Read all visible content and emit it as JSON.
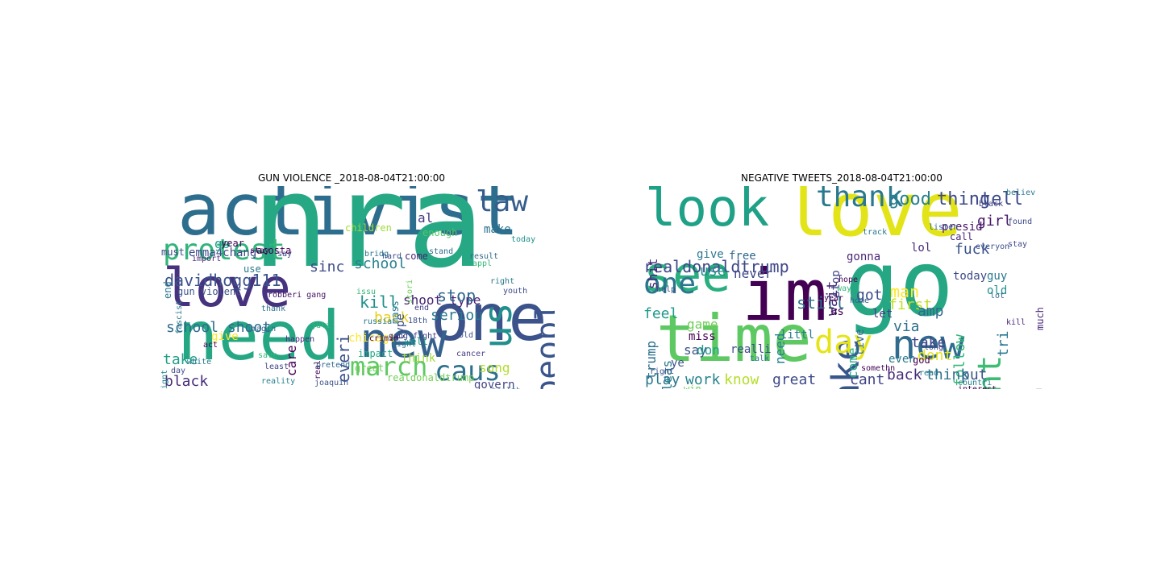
{
  "figure": {
    "panels": [
      {
        "title": "GUN VIOLENCE _2018-08-04T21:00:00",
        "words": [
          {
            "text": "activist",
            "color": "#2d6e8e"
          },
          {
            "text": "nra",
            "color": "#27a884"
          },
          {
            "text": "need",
            "color": "#26a784"
          },
          {
            "text": "one",
            "color": "#3b528b"
          },
          {
            "text": "love",
            "color": "#46327e"
          },
          {
            "text": "new",
            "color": "#34618d"
          },
          {
            "text": "protest",
            "color": "#31b57b"
          },
          {
            "text": "us",
            "color": "#21908d"
          },
          {
            "text": "law",
            "color": "#365c8d"
          },
          {
            "text": "peopl",
            "color": "#39558c"
          },
          {
            "text": "march",
            "color": "#5ec962"
          },
          {
            "text": "caus",
            "color": "#2d708e"
          },
          {
            "text": "davidhogg111",
            "color": "#3b528b"
          },
          {
            "text": "school shoot",
            "color": "#2f6c8e"
          },
          {
            "text": "sinc",
            "color": "#3e4a89"
          },
          {
            "text": "school",
            "color": "#26828e"
          },
          {
            "text": "shoot type",
            "color": "#482374"
          },
          {
            "text": "care",
            "color": "#440154"
          },
          {
            "text": "everi",
            "color": "#3b528b"
          },
          {
            "text": "kill",
            "color": "#21908d"
          },
          {
            "text": "stop",
            "color": "#31688e"
          },
          {
            "text": "seriou",
            "color": "#2a788e"
          },
          {
            "text": "back",
            "color": "#e6cf1c"
          },
          {
            "text": "black",
            "color": "#472c7a"
          },
          {
            "text": "take",
            "color": "#1f9e89"
          },
          {
            "text": "song",
            "color": "#b2dd2d"
          },
          {
            "text": "emma4chang",
            "color": "#3e4a89"
          },
          {
            "text": "acosta",
            "color": "#440154"
          },
          {
            "text": "children",
            "color": "#9fda3a"
          },
          {
            "text": "al",
            "color": "#443983"
          },
          {
            "text": "make",
            "color": "#2c728e"
          },
          {
            "text": "enough",
            "color": "#52c569"
          },
          {
            "text": "gun violenc",
            "color": "#3b528b"
          },
          {
            "text": "hope",
            "color": "#6ece58"
          },
          {
            "text": "help",
            "color": "#25858e"
          },
          {
            "text": "govern",
            "color": "#414487"
          },
          {
            "text": "chicago",
            "color": "#fde725"
          },
          {
            "text": "type",
            "color": "#3b528b"
          },
          {
            "text": "mass",
            "color": "#2a788e"
          },
          {
            "text": "gang fight",
            "color": "#433e85"
          },
          {
            "text": "realdonaldtrump",
            "color": "#73d056"
          },
          {
            "text": "end",
            "color": "#2a788e"
          },
          {
            "text": "go",
            "color": "#1f9e89"
          },
          {
            "text": "must",
            "color": "#3e4a89"
          },
          {
            "text": "year",
            "color": "#440154"
          },
          {
            "text": "use",
            "color": "#2a788e"
          },
          {
            "text": "give",
            "color": "#fde725"
          },
          {
            "text": "think",
            "color": "#9fda3a"
          },
          {
            "text": "great",
            "color": "#6ece58"
          },
          {
            "text": "word",
            "color": "#3b528b"
          },
          {
            "text": "countri",
            "color": "#35b779"
          },
          {
            "text": "mass murdersuicid",
            "color": "#31688e"
          },
          {
            "text": "impact",
            "color": "#22a884"
          },
          {
            "text": "well",
            "color": "#1f9e89"
          },
          {
            "text": "come",
            "color": "#482878"
          },
          {
            "text": "robberi gang",
            "color": "#481467"
          },
          {
            "text": "bridg",
            "color": "#2a788e"
          },
          {
            "text": "hard",
            "color": "#3e4a89"
          },
          {
            "text": "stand",
            "color": "#2d708e"
          },
          {
            "text": "joaquin",
            "color": "#3b528b"
          },
          {
            "text": "reality",
            "color": "#26828e"
          },
          {
            "text": "save",
            "color": "#35b779"
          },
          {
            "text": "real",
            "color": "#440154"
          },
          {
            "text": "fight",
            "color": "#2a788e"
          },
          {
            "text": "end",
            "color": "#433e85"
          },
          {
            "text": "stori",
            "color": "#6ece58"
          },
          {
            "text": "today",
            "color": "#21908d"
          },
          {
            "text": "youth",
            "color": "#3e4a89"
          },
          {
            "text": "imagin",
            "color": "#31688e"
          },
          {
            "text": "act",
            "color": "#440154"
          },
          {
            "text": "white",
            "color": "#2a788e"
          },
          {
            "text": "happen",
            "color": "#472c7a"
          },
          {
            "text": "least",
            "color": "#414487"
          },
          {
            "text": "issu",
            "color": "#35b779"
          },
          {
            "text": "cancer",
            "color": "#433e85"
          },
          {
            "text": "health",
            "color": "#31688e"
          },
          {
            "text": "right",
            "color": "#2a788e"
          },
          {
            "text": "say",
            "color": "#3e4a89"
          },
          {
            "text": "stay",
            "color": "#440154"
          },
          {
            "text": "thank",
            "color": "#2d708e"
          },
          {
            "text": "result",
            "color": "#31688e"
          },
          {
            "text": "18th",
            "color": "#3b528b"
          },
          {
            "text": "ignt",
            "color": "#26828e"
          },
          {
            "text": "day",
            "color": "#3e4a89"
          },
          {
            "text": "fascist",
            "color": "#2a788e"
          },
          {
            "text": "juli",
            "color": "#35b779"
          },
          {
            "text": "crimin",
            "color": "#440154"
          },
          {
            "text": "import",
            "color": "#482878"
          },
          {
            "text": "pretend",
            "color": "#31688e"
          },
          {
            "text": "russia",
            "color": "#2a788e"
          },
          {
            "text": "old",
            "color": "#3b528b"
          },
          {
            "text": "appl",
            "color": "#35b779"
          }
        ]
      },
      {
        "title": "NEGATIVE TWEETS_2018-08-04T21:00:00",
        "words": [
          {
            "text": "love",
            "color": "#e2e418"
          },
          {
            "text": "go",
            "color": "#26a784"
          },
          {
            "text": "peopl",
            "color": "#2c728e"
          },
          {
            "text": "im",
            "color": "#440154"
          },
          {
            "text": "time",
            "color": "#5ec962"
          },
          {
            "text": "look",
            "color": "#1fa187"
          },
          {
            "text": "see",
            "color": "#29af7f"
          },
          {
            "text": "new",
            "color": "#2f6b8e"
          },
          {
            "text": "want",
            "color": "#3dbc74"
          },
          {
            "text": "make",
            "color": "#39568c"
          },
          {
            "text": "day",
            "color": "#e5e419"
          },
          {
            "text": "one",
            "color": "#2b758e"
          },
          {
            "text": "thank",
            "color": "#2a788e"
          },
          {
            "text": "realdonaldtrump",
            "color": "#3f4788"
          },
          {
            "text": "good",
            "color": "#27808e"
          },
          {
            "text": "thing",
            "color": "#3e4989"
          },
          {
            "text": "tell",
            "color": "#3e4989"
          },
          {
            "text": "girl",
            "color": "#481668"
          },
          {
            "text": "fuck",
            "color": "#3a538b"
          },
          {
            "text": "lol",
            "color": "#472d7b"
          },
          {
            "text": "feel",
            "color": "#1f9a8a"
          },
          {
            "text": "use",
            "color": "#21918c"
          },
          {
            "text": "never",
            "color": "#3f4788"
          },
          {
            "text": "shit",
            "color": "#482475"
          },
          {
            "text": "still",
            "color": "#2c738e"
          },
          {
            "text": "wait",
            "color": "#472a7a"
          },
          {
            "text": "got",
            "color": "#3e4c8a"
          },
          {
            "text": "man",
            "color": "#fde725"
          },
          {
            "text": "first",
            "color": "#c2df23"
          },
          {
            "text": "amp",
            "color": "#31688e"
          },
          {
            "text": "via",
            "color": "#2d708e"
          },
          {
            "text": "follow",
            "color": "#35b779"
          },
          {
            "text": "tri",
            "color": "#2a788e"
          },
          {
            "text": "much",
            "color": "#482878"
          },
          {
            "text": "take",
            "color": "#414487"
          },
          {
            "text": "dont",
            "color": "#e5e419"
          },
          {
            "text": "put",
            "color": "#3b528b"
          },
          {
            "text": "back",
            "color": "#472c7a"
          },
          {
            "text": "think",
            "color": "#2c728e"
          },
          {
            "text": "cant",
            "color": "#414487"
          },
          {
            "text": "great",
            "color": "#3e4a89"
          },
          {
            "text": "know",
            "color": "#b5de2b"
          },
          {
            "text": "work",
            "color": "#26828e"
          },
          {
            "text": "play",
            "color": "#2a788e"
          },
          {
            "text": "say",
            "color": "#3b528b"
          },
          {
            "text": "game",
            "color": "#6ece58"
          },
          {
            "text": "miss",
            "color": "#440154"
          },
          {
            "text": "pleas",
            "color": "#2a788e"
          },
          {
            "text": "trump",
            "color": "#2d708e"
          },
          {
            "text": "don",
            "color": "#1f9e89"
          },
          {
            "text": "need",
            "color": "#26828e"
          },
          {
            "text": "come",
            "color": "#22a884"
          },
          {
            "text": "live",
            "color": "#31688e"
          },
          {
            "text": "realli",
            "color": "#3e4a89"
          },
          {
            "text": "stop",
            "color": "#414487"
          },
          {
            "text": "gonna",
            "color": "#482878"
          },
          {
            "text": "give",
            "color": "#2a788e"
          },
          {
            "text": "free",
            "color": "#31688e"
          },
          {
            "text": "ye",
            "color": "#3b528b"
          },
          {
            "text": "littl",
            "color": "#2a788e"
          },
          {
            "text": "let",
            "color": "#433e85"
          },
          {
            "text": "us",
            "color": "#440154"
          },
          {
            "text": "even",
            "color": "#2a788e"
          },
          {
            "text": "hope",
            "color": "#440154"
          },
          {
            "text": "presid",
            "color": "#481467"
          },
          {
            "text": "today",
            "color": "#3e4a89"
          },
          {
            "text": "old",
            "color": "#21908d"
          },
          {
            "text": "win",
            "color": "#6ece58"
          },
          {
            "text": "guy",
            "color": "#2a788e"
          },
          {
            "text": "call",
            "color": "#482878"
          },
          {
            "text": "god",
            "color": "#440154"
          },
          {
            "text": "believ",
            "color": "#2a788e"
          },
          {
            "text": "found",
            "color": "#3e4a89"
          },
          {
            "text": "interest",
            "color": "#440154"
          },
          {
            "text": "listen",
            "color": "#31688e"
          },
          {
            "text": "everyon",
            "color": "#3b528b"
          },
          {
            "text": "talk",
            "color": "#2a788e"
          },
          {
            "text": "long",
            "color": "#414487"
          },
          {
            "text": "way",
            "color": "#35b779"
          },
          {
            "text": "year",
            "color": "#440154"
          },
          {
            "text": "track",
            "color": "#2a788e"
          },
          {
            "text": "help",
            "color": "#3e4a89"
          },
          {
            "text": "home",
            "color": "#31688e"
          },
          {
            "text": "right",
            "color": "#3b528b"
          },
          {
            "text": "somethn",
            "color": "#440154"
          },
          {
            "text": "read",
            "color": "#2a788e"
          },
          {
            "text": "stay",
            "color": "#3e4a89"
          },
          {
            "text": "kill",
            "color": "#482878"
          },
          {
            "text": "lot",
            "color": "#31688e"
          },
          {
            "text": "countri",
            "color": "#26828e"
          },
          {
            "text": "black",
            "color": "#414487"
          }
        ]
      }
    ]
  }
}
